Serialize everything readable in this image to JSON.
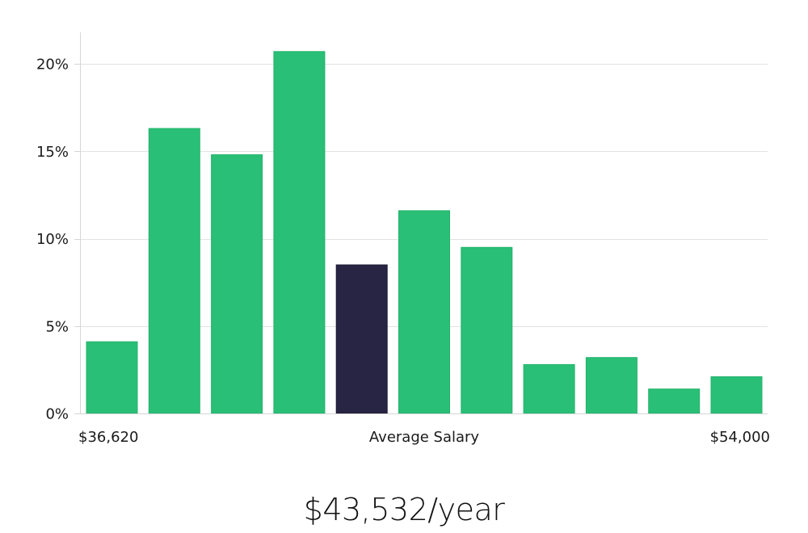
{
  "chart_data": {
    "type": "bar",
    "title": "",
    "xlabel": "Average Salary",
    "ylabel": "",
    "x_min_label": "$36,620",
    "x_max_label": "$54,000",
    "ylim": [
      0,
      21.75
    ],
    "yticks": [
      0,
      5,
      10,
      15,
      20
    ],
    "ytick_labels": [
      "0%",
      "5%",
      "10%",
      "15%",
      "20%"
    ],
    "grid": true,
    "values": [
      4.1,
      16.3,
      14.8,
      20.7,
      8.5,
      11.6,
      9.5,
      2.8,
      3.2,
      1.4,
      2.1
    ],
    "highlight_index": 4,
    "colors": {
      "bar": "#2abf76",
      "bar_edge": "#22b36c",
      "highlight": "#282444"
    }
  },
  "summary": {
    "average_salary": "$43,532/year"
  }
}
